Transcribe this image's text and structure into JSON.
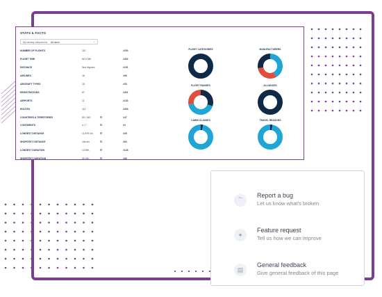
{
  "stats": {
    "title": "STATS & FACTS",
    "filter_prefix": "My ranking compared to",
    "filter_value": "All users",
    "rows": [
      {
        "label": "NUMBER OF FLIGHTS",
        "value": "110",
        "rank": "#293"
      },
      {
        "label": "FLIGHT TIME",
        "value": "8d 5 18h",
        "rank": "#432"
      },
      {
        "label": "DISTANCE",
        "value": "5ea Highere",
        "rank": "#191"
      },
      {
        "label": "AIRLINES",
        "value": "18",
        "rank": "#95"
      },
      {
        "label": "AIRCRAFT TYPES",
        "value": "18",
        "rank": "#35"
      },
      {
        "label": "REGISTRATIONS",
        "value": "87",
        "rank": "#301"
      },
      {
        "label": "AIRPORTS",
        "value": "11",
        "rank": "#133"
      },
      {
        "label": "ROUTES",
        "value": "112",
        "rank": "#305"
      },
      {
        "label": "COUNTRIES & TERRITORIES",
        "value": "80 / 249",
        "rank": "#47"
      },
      {
        "label": "CONTINENTS",
        "value": "4 / 7",
        "rank": "#3"
      },
      {
        "label": "LONGEST DISTANCE",
        "value": "11,879 km",
        "rank": "#45"
      },
      {
        "label": "SHORTEST DISTANCE",
        "value": "16a km",
        "rank": "#63"
      },
      {
        "label": "LONGEST DURATION",
        "value": "13:59h",
        "rank": "#128"
      },
      {
        "label": "SHORTEST DURATION",
        "value": "00:24h",
        "rank": "#35"
      }
    ],
    "charts": [
      {
        "title": "FLIGHT CATEGORIES",
        "segments": [
          {
            "value": 100,
            "color": "#0f2a47"
          }
        ]
      },
      {
        "title": "MANUFACTURERS",
        "segments": [
          {
            "value": 42,
            "color": "#1fa5d6"
          },
          {
            "value": 30,
            "color": "#e04e3c"
          },
          {
            "value": 28,
            "color": "#0f2a47"
          }
        ]
      },
      {
        "title": "FLIGHT RANGES",
        "segments": [
          {
            "value": 30,
            "color": "#0f2a47"
          },
          {
            "value": 42,
            "color": "#1fa5d6"
          },
          {
            "value": 28,
            "color": "#e04e3c"
          }
        ]
      },
      {
        "title": "ALLIANCES",
        "segments": [
          {
            "value": 100,
            "color": "#0f2a47"
          }
        ]
      },
      {
        "title": "CABIN CLASSES",
        "segments": [
          {
            "value": 3,
            "color": "#0f2a47"
          },
          {
            "value": 97,
            "color": "#1fa5d6"
          }
        ]
      },
      {
        "title": "TRAVEL REASONS",
        "segments": [
          {
            "value": 3,
            "color": "#0f2a47"
          },
          {
            "value": 97,
            "color": "#1fa5d6"
          }
        ]
      }
    ]
  },
  "feedback": {
    "items": [
      {
        "title": "Report a bug",
        "subtitle": "Let us know what's broken",
        "icon": "bug-icon"
      },
      {
        "title": "Feature request",
        "subtitle": "Tell us how we can improve",
        "icon": "sparkle-icon"
      },
      {
        "title": "General feedback",
        "subtitle": "Give general feedback of this page",
        "icon": "document-icon"
      }
    ]
  },
  "colors": {
    "accent": "#7b3f91",
    "navy": "#0f2a47",
    "sky": "#1fa5d6",
    "red": "#e04e3c"
  }
}
